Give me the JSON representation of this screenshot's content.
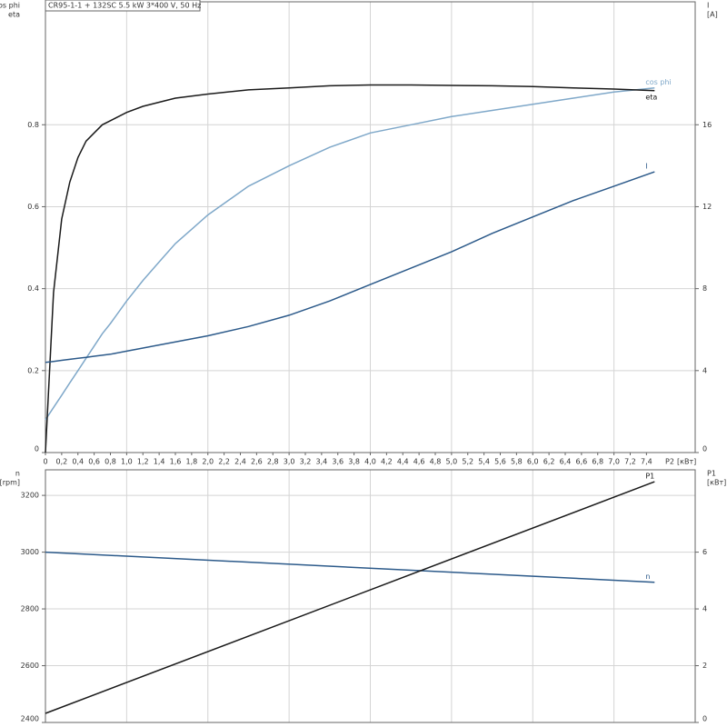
{
  "chart_data": [
    {
      "type": "line",
      "title": "CR95-1-1 + 132SC  5.5 kW  3*400 V, 50 Hz",
      "y_label": [
        "cos phi",
        "eta"
      ],
      "y2_label": [
        "I",
        "[A]"
      ],
      "x_label": [
        "P2",
        "[кВт]"
      ],
      "x": [
        0,
        0.1,
        0.2,
        0.3,
        0.4,
        0.5,
        0.6,
        0.7,
        0.8,
        1.0,
        1.2,
        1.4,
        1.6,
        1.8,
        2.0,
        2.5,
        3.0,
        3.5,
        4.0,
        4.5,
        5.0,
        5.5,
        6.0,
        6.5,
        7.0,
        7.5
      ],
      "series": [
        {
          "name": "cos phi",
          "color": "#7fa8c9",
          "values": [
            0.08,
            0.11,
            0.14,
            0.17,
            0.2,
            0.23,
            0.26,
            0.29,
            0.315,
            0.37,
            0.42,
            0.465,
            0.51,
            0.545,
            0.58,
            0.65,
            0.7,
            0.745,
            0.78,
            0.8,
            0.82,
            0.835,
            0.85,
            0.865,
            0.88,
            0.89
          ]
        },
        {
          "name": "eta",
          "color": "#1a1a1a",
          "values": [
            0,
            0.39,
            0.57,
            0.66,
            0.72,
            0.76,
            0.78,
            0.8,
            0.81,
            0.83,
            0.845,
            0.855,
            0.865,
            0.87,
            0.875,
            0.885,
            0.89,
            0.895,
            0.897,
            0.897,
            0.896,
            0.895,
            0.893,
            0.89,
            0.887,
            0.883
          ]
        },
        {
          "name": "I",
          "color": "#2c5a8a",
          "axis": "y2",
          "values": [
            4.4,
            4.45,
            4.5,
            4.55,
            4.6,
            4.65,
            4.7,
            4.75,
            4.8,
            4.95,
            5.1,
            5.25,
            5.4,
            5.55,
            5.7,
            6.15,
            6.7,
            7.4,
            8.2,
            9.0,
            9.8,
            10.7,
            11.5,
            12.3,
            13.0,
            13.7
          ]
        }
      ],
      "xlim": [
        0,
        8
      ],
      "xticks": [
        0,
        {
          "value": 0.2,
          "label": "0,2"
        },
        {
          "value": 0.4,
          "label": "0,4"
        },
        {
          "value": 0.6,
          "label": "0,6"
        },
        {
          "value": 0.8,
          "label": "0,8"
        },
        {
          "value": 1,
          "label": "1,0"
        },
        {
          "value": 1.2,
          "label": "1,2"
        },
        {
          "value": 1.4,
          "label": "1,4"
        },
        {
          "value": 1.6,
          "label": "1,6"
        },
        {
          "value": 1.8,
          "label": "1,8"
        },
        {
          "value": 2,
          "label": "2,0"
        },
        {
          "value": 2.2,
          "label": "2,2"
        },
        {
          "value": 2.4,
          "label": "2,4"
        },
        {
          "value": 2.6,
          "label": "2,6"
        },
        {
          "value": 2.8,
          "label": "2,8"
        },
        {
          "value": 3,
          "label": "3,0"
        },
        {
          "value": 3.2,
          "label": "3,2"
        },
        {
          "value": 3.4,
          "label": "3,4"
        },
        {
          "value": 3.6,
          "label": "3,6"
        },
        {
          "value": 3.8,
          "label": "3,8"
        },
        {
          "value": 4,
          "label": "4,0"
        },
        {
          "value": 4.2,
          "label": "4,2"
        },
        {
          "value": 4.4,
          "label": "4,4"
        },
        {
          "value": 4.6,
          "label": "4,6"
        },
        {
          "value": 4.8,
          "label": "4,8"
        },
        {
          "value": 5,
          "label": "5,0"
        },
        {
          "value": 5.2,
          "label": "5,2"
        },
        {
          "value": 5.4,
          "label": "5,4"
        },
        {
          "value": 5.6,
          "label": "5,6"
        },
        {
          "value": 5.8,
          "label": "5,8"
        },
        {
          "value": 6,
          "label": "6,0"
        },
        {
          "value": 6.2,
          "label": "6,2"
        },
        {
          "value": 6.4,
          "label": "6,4"
        },
        {
          "value": 6.6,
          "label": "6,6"
        },
        {
          "value": 6.8,
          "label": "6,8"
        },
        {
          "value": 7,
          "label": "7,0"
        },
        {
          "value": 7.2,
          "label": "7,2"
        },
        {
          "value": 7.4,
          "label": "7,4"
        }
      ],
      "ylim": [
        0,
        1.1
      ],
      "yticks": [
        0,
        0.2,
        0.4,
        0.6,
        0.8
      ],
      "y2lim": [
        0,
        22
      ],
      "y2ticks": [
        0,
        4,
        8,
        12,
        16
      ],
      "grid": true
    },
    {
      "type": "line",
      "y_label": [
        "n",
        "[rpm]"
      ],
      "y2_label": [
        "P1",
        "[кВт]"
      ],
      "x": [
        0,
        7.5
      ],
      "series": [
        {
          "name": "n",
          "color": "#2c5a8a",
          "values": [
            3000,
            2894
          ]
        },
        {
          "name": "P1",
          "color": "#1a1a1a",
          "axis": "y2",
          "values": [
            0.32,
            8.48
          ]
        }
      ],
      "xlim": [
        0,
        8
      ],
      "ylim": [
        2400,
        3290
      ],
      "yticks": [
        2400,
        2600,
        2800,
        3000,
        3200
      ],
      "y2lim": [
        0,
        8.9
      ],
      "y2ticks": [
        0,
        2,
        4,
        6
      ],
      "grid": true
    }
  ]
}
